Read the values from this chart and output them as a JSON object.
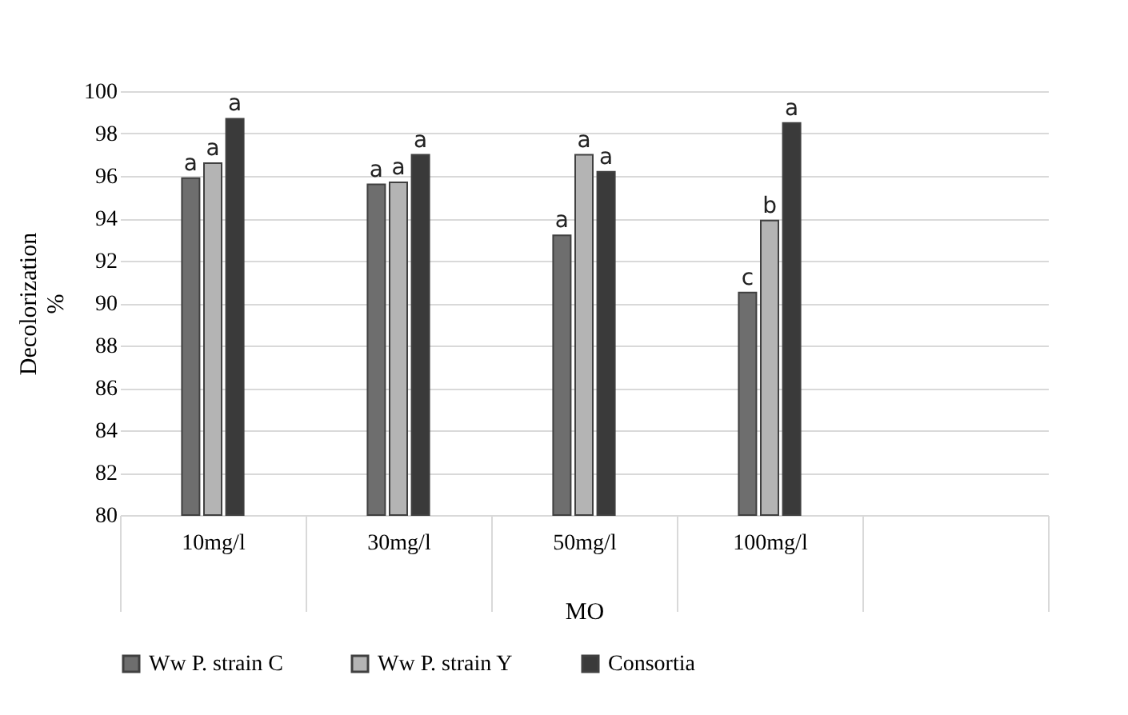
{
  "chart_data": {
    "type": "bar",
    "xlabel": "MO",
    "ylabel": "Decolorization\n%",
    "categories": [
      "10mg/l",
      "30mg/l",
      "50mg/l",
      "100mg/l",
      null
    ],
    "series": [
      {
        "name": "Ww P. strain C",
        "color": "#6e6e6e",
        "values": [
          95.9,
          95.6,
          93.2,
          90.5,
          null
        ],
        "value_labels": [
          "a",
          "a",
          "a",
          "c",
          null
        ]
      },
      {
        "name": "Ww P. strain Y",
        "color": "#b4b4b4",
        "values": [
          96.6,
          95.7,
          97.0,
          93.9,
          null
        ],
        "value_labels": [
          "a",
          "a",
          "a",
          "b",
          null
        ]
      },
      {
        "name": "Consortia",
        "color": "#3a3a3a",
        "values": [
          98.7,
          97.0,
          96.2,
          98.5,
          null
        ],
        "value_labels": [
          "a",
          "a",
          "a",
          "a",
          null
        ]
      }
    ],
    "ylim": [
      80,
      100
    ],
    "yticks": [
      80,
      82,
      84,
      86,
      88,
      90,
      92,
      94,
      96,
      98,
      100
    ],
    "grid": "y",
    "legend": "bottom"
  }
}
